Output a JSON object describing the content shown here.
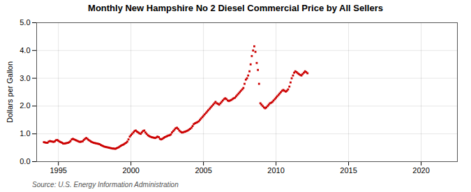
{
  "chart_data": {
    "type": "scatter",
    "title": "Monthly New Hampshire No 2 Diesel Commercial Price by All Sellers",
    "ylabel": "Dollars per Gallon",
    "source": "Source: U.S. Energy Information Administration",
    "color": "#cc0000",
    "marker": "square",
    "grid": true,
    "xlim": [
      1993.5,
      2022.5
    ],
    "ylim": [
      0.0,
      5.0
    ],
    "xticks": [
      1995,
      2000,
      2005,
      2010,
      2015,
      2020
    ],
    "yticks": [
      {
        "value": 0.0,
        "label": "0.0"
      },
      {
        "value": 1.0,
        "label": "1.0"
      },
      {
        "value": 2.0,
        "label": "2.0"
      },
      {
        "value": 3.0,
        "label": "3.0"
      },
      {
        "value": 4.0,
        "label": "4.0"
      },
      {
        "value": 5.0,
        "label": "5.0"
      }
    ],
    "x": [
      1994.0,
      1994.08,
      1994.17,
      1994.25,
      1994.33,
      1994.42,
      1994.5,
      1994.58,
      1994.67,
      1994.75,
      1994.83,
      1994.92,
      1995.0,
      1995.08,
      1995.17,
      1995.25,
      1995.33,
      1995.42,
      1995.5,
      1995.58,
      1995.67,
      1995.75,
      1995.83,
      1995.92,
      1996.0,
      1996.08,
      1996.17,
      1996.25,
      1996.33,
      1996.42,
      1996.5,
      1996.58,
      1996.67,
      1996.75,
      1996.83,
      1996.92,
      1997.0,
      1997.08,
      1997.17,
      1997.25,
      1997.33,
      1997.42,
      1997.5,
      1997.58,
      1997.67,
      1997.75,
      1997.83,
      1997.92,
      1998.0,
      1998.08,
      1998.17,
      1998.25,
      1998.33,
      1998.42,
      1998.5,
      1998.58,
      1998.67,
      1998.75,
      1998.83,
      1998.92,
      1999.0,
      1999.08,
      1999.17,
      1999.25,
      1999.33,
      1999.42,
      1999.5,
      1999.58,
      1999.67,
      1999.75,
      1999.83,
      1999.92,
      2000.0,
      2000.08,
      2000.17,
      2000.25,
      2000.33,
      2000.42,
      2000.5,
      2000.58,
      2000.67,
      2000.75,
      2000.83,
      2000.92,
      2001.0,
      2001.08,
      2001.17,
      2001.25,
      2001.33,
      2001.42,
      2001.5,
      2001.58,
      2001.67,
      2001.75,
      2001.83,
      2001.92,
      2002.0,
      2002.08,
      2002.17,
      2002.25,
      2002.33,
      2002.42,
      2002.5,
      2002.58,
      2002.67,
      2002.75,
      2002.83,
      2002.92,
      2003.0,
      2003.08,
      2003.17,
      2003.25,
      2003.33,
      2003.42,
      2003.5,
      2003.58,
      2003.67,
      2003.75,
      2003.83,
      2003.92,
      2004.0,
      2004.08,
      2004.17,
      2004.25,
      2004.33,
      2004.42,
      2004.5,
      2004.58,
      2004.67,
      2004.75,
      2004.83,
      2004.92,
      2005.0,
      2005.08,
      2005.17,
      2005.25,
      2005.33,
      2005.42,
      2005.5,
      2005.58,
      2005.67,
      2005.75,
      2005.83,
      2005.92,
      2006.0,
      2006.08,
      2006.17,
      2006.25,
      2006.33,
      2006.42,
      2006.5,
      2006.58,
      2006.67,
      2006.75,
      2006.83,
      2006.92,
      2007.0,
      2007.08,
      2007.17,
      2007.25,
      2007.33,
      2007.42,
      2007.5,
      2007.58,
      2007.67,
      2007.75,
      2007.83,
      2007.92,
      2008.0,
      2008.08,
      2008.17,
      2008.25,
      2008.33,
      2008.42,
      2008.5,
      2008.58,
      2008.67,
      2008.75,
      2008.83,
      2008.92,
      2009.0,
      2009.08,
      2009.17,
      2009.25,
      2009.33,
      2009.42,
      2009.5,
      2009.58,
      2009.67,
      2009.75,
      2009.83,
      2009.92,
      2010.0,
      2010.08,
      2010.17,
      2010.25,
      2010.33,
      2010.42,
      2010.5,
      2010.58,
      2010.67,
      2010.75,
      2010.83,
      2010.92,
      2011.0,
      2011.08,
      2011.17,
      2011.25,
      2011.33,
      2011.42,
      2011.5,
      2011.58,
      2011.67,
      2011.75,
      2011.83,
      2011.92,
      2012.0,
      2012.08,
      2012.17
    ],
    "values": [
      0.7,
      0.69,
      0.68,
      0.68,
      0.72,
      0.74,
      0.73,
      0.72,
      0.71,
      0.73,
      0.77,
      0.78,
      0.75,
      0.72,
      0.7,
      0.68,
      0.65,
      0.65,
      0.66,
      0.67,
      0.68,
      0.7,
      0.74,
      0.8,
      0.82,
      0.8,
      0.78,
      0.76,
      0.74,
      0.72,
      0.71,
      0.72,
      0.73,
      0.78,
      0.82,
      0.85,
      0.82,
      0.78,
      0.75,
      0.72,
      0.7,
      0.68,
      0.67,
      0.66,
      0.65,
      0.64,
      0.63,
      0.6,
      0.58,
      0.56,
      0.54,
      0.53,
      0.52,
      0.51,
      0.5,
      0.49,
      0.48,
      0.47,
      0.47,
      0.46,
      0.48,
      0.5,
      0.52,
      0.55,
      0.58,
      0.6,
      0.62,
      0.65,
      0.68,
      0.72,
      0.8,
      0.9,
      0.95,
      1.0,
      1.05,
      1.1,
      1.12,
      1.08,
      1.05,
      1.02,
      1.0,
      1.05,
      1.1,
      1.12,
      1.05,
      1.0,
      0.95,
      0.92,
      0.9,
      0.88,
      0.87,
      0.86,
      0.85,
      0.87,
      0.9,
      0.88,
      0.82,
      0.8,
      0.82,
      0.85,
      0.88,
      0.9,
      0.92,
      0.94,
      0.95,
      0.98,
      1.05,
      1.1,
      1.15,
      1.2,
      1.22,
      1.18,
      1.12,
      1.08,
      1.05,
      1.05,
      1.07,
      1.08,
      1.1,
      1.12,
      1.15,
      1.18,
      1.22,
      1.28,
      1.35,
      1.38,
      1.4,
      1.42,
      1.45,
      1.5,
      1.55,
      1.6,
      1.65,
      1.7,
      1.75,
      1.8,
      1.85,
      1.9,
      1.95,
      2.0,
      2.05,
      2.1,
      2.15,
      2.1,
      2.08,
      2.05,
      2.1,
      2.15,
      2.2,
      2.25,
      2.28,
      2.25,
      2.2,
      2.18,
      2.2,
      2.22,
      2.25,
      2.28,
      2.3,
      2.35,
      2.4,
      2.45,
      2.5,
      2.55,
      2.6,
      2.65,
      2.8,
      2.95,
      3.0,
      3.1,
      3.25,
      3.5,
      3.8,
      4.0,
      4.15,
      3.95,
      3.55,
      3.3,
      2.8,
      2.1,
      2.05,
      2.0,
      1.95,
      1.92,
      1.95,
      2.0,
      2.05,
      2.1,
      2.12,
      2.15,
      2.2,
      2.25,
      2.3,
      2.35,
      2.4,
      2.45,
      2.5,
      2.55,
      2.58,
      2.55,
      2.52,
      2.55,
      2.6,
      2.7,
      2.85,
      3.0,
      3.1,
      3.2,
      3.25,
      3.22,
      3.18,
      3.15,
      3.12,
      3.1,
      3.15,
      3.2,
      3.25,
      3.22,
      3.18
    ]
  }
}
